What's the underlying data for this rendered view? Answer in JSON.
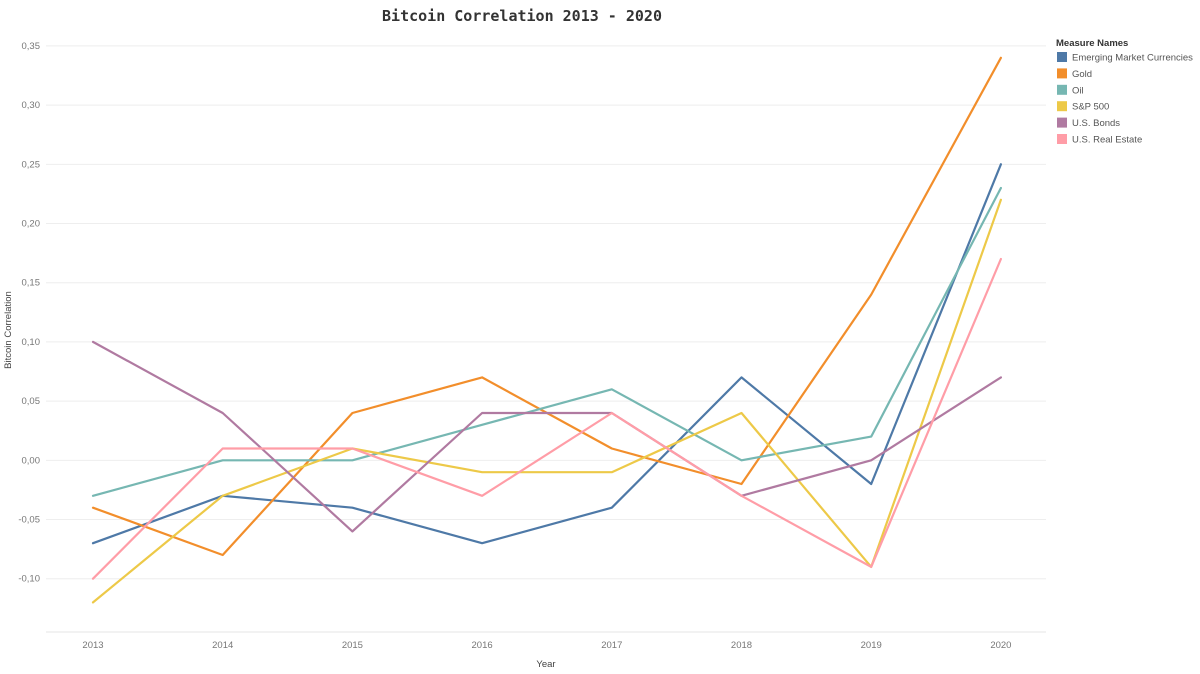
{
  "chart_data": {
    "type": "line",
    "title": "Bitcoin Correlation 2013 - 2020",
    "xlabel": "Year",
    "ylabel": "Bitcoin Correlation",
    "x": [
      "2013",
      "2014",
      "2015",
      "2016",
      "2017",
      "2018",
      "2019",
      "2020"
    ],
    "ylim": [
      -0.145,
      0.355
    ],
    "yticks": [
      -0.1,
      -0.05,
      0.0,
      0.05,
      0.1,
      0.15,
      0.2,
      0.25,
      0.3,
      0.35
    ],
    "ytick_labels": [
      "-0,10",
      "-0,05",
      "0,00",
      "0,05",
      "0,10",
      "0,15",
      "0,20",
      "0,25",
      "0,30",
      "0,35"
    ],
    "grid": true,
    "legend_position": "top-right",
    "legend_title": "Measure Names",
    "series": [
      {
        "name": "Emerging Market Currencies",
        "color": "#4e79a7",
        "values": [
          -0.07,
          -0.03,
          -0.04,
          -0.07,
          -0.04,
          0.07,
          -0.02,
          0.25
        ]
      },
      {
        "name": "Gold",
        "color": "#f28e2b",
        "values": [
          -0.04,
          -0.08,
          0.04,
          0.07,
          0.01,
          -0.02,
          0.14,
          0.34
        ]
      },
      {
        "name": "Oil",
        "color": "#76b7b2",
        "values": [
          -0.03,
          0.0,
          0.0,
          0.03,
          0.06,
          0.0,
          0.02,
          0.23
        ]
      },
      {
        "name": "S&P 500",
        "color": "#edc948",
        "values": [
          -0.12,
          -0.03,
          0.01,
          -0.01,
          -0.01,
          0.04,
          -0.09,
          0.22
        ]
      },
      {
        "name": "U.S. Bonds",
        "color": "#b07aa1",
        "values": [
          0.1,
          0.04,
          -0.06,
          0.04,
          0.04,
          -0.03,
          0.0,
          0.07
        ]
      },
      {
        "name": "U.S. Real Estate",
        "color": "#ff9da7",
        "values": [
          -0.1,
          0.01,
          0.01,
          -0.03,
          0.04,
          -0.03,
          -0.09,
          0.17
        ]
      }
    ]
  }
}
